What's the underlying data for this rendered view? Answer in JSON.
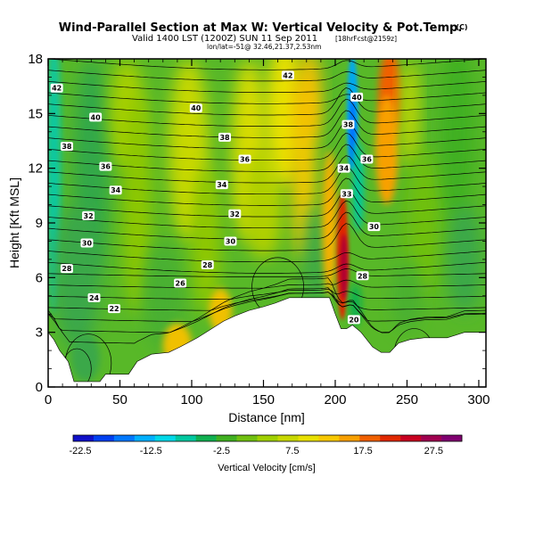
{
  "title": {
    "main": "Wind-Parallel Section at Max W: Vertical Velocity & Pot.Temp.",
    "copyright": "(C)",
    "valid_line_a": "Valid 1400 LST (1200Z) SUN 11 Sep 2011",
    "valid_line_b": "[18hrFcst@2159z]",
    "location_line": "lon/lat=-51@ 32.46,21.37,2.53nm"
  },
  "chart_data": {
    "type": "heatmap",
    "title": "Wind-Parallel Section at Max W: Vertical Velocity & Pot.Temp.",
    "xlabel": "Distance [nm]",
    "ylabel": "Height [Kft MSL]",
    "xlim": [
      0,
      305
    ],
    "ylim": [
      0,
      18
    ],
    "x_ticks": [
      "0",
      "50",
      "100",
      "150",
      "200",
      "250",
      "300"
    ],
    "y_ticks": [
      "0",
      "3",
      "6",
      "9",
      "12",
      "15",
      "18"
    ],
    "colorbar": {
      "title": "Vertical Velocity [cm/s]",
      "min": -22.5,
      "max": 32.5,
      "tick_labels": [
        "-22.5",
        "-12.5",
        "-2.5",
        "7.5",
        "17.5",
        "27.5"
      ],
      "colors": [
        "#1010c8",
        "#0040f0",
        "#0078ff",
        "#00b0ff",
        "#00d8e8",
        "#00c8a0",
        "#10b050",
        "#40b020",
        "#70c010",
        "#a0d000",
        "#c8d800",
        "#e8e000",
        "#f8c800",
        "#f8a000",
        "#f06000",
        "#e02800",
        "#c80020",
        "#a00050",
        "#800070"
      ]
    },
    "contour_labels": [
      {
        "label": "42",
        "x": 6,
        "y": 16.4
      },
      {
        "label": "42",
        "x": 167,
        "y": 17.1
      },
      {
        "label": "40",
        "x": 33,
        "y": 14.8
      },
      {
        "label": "40",
        "x": 103,
        "y": 15.3
      },
      {
        "label": "40",
        "x": 215,
        "y": 15.9
      },
      {
        "label": "38",
        "x": 13,
        "y": 13.2
      },
      {
        "label": "38",
        "x": 123,
        "y": 13.7
      },
      {
        "label": "38",
        "x": 209,
        "y": 14.4
      },
      {
        "label": "36",
        "x": 40,
        "y": 12.1
      },
      {
        "label": "36",
        "x": 137,
        "y": 12.5
      },
      {
        "label": "36",
        "x": 222,
        "y": 12.5
      },
      {
        "label": "34",
        "x": 47,
        "y": 10.8
      },
      {
        "label": "34",
        "x": 121,
        "y": 11.1
      },
      {
        "label": "34",
        "x": 206,
        "y": 12.0
      },
      {
        "label": "33",
        "x": 208,
        "y": 10.6
      },
      {
        "label": "32",
        "x": 28,
        "y": 9.4
      },
      {
        "label": "32",
        "x": 130,
        "y": 9.5
      },
      {
        "label": "30",
        "x": 27,
        "y": 7.9
      },
      {
        "label": "30",
        "x": 127,
        "y": 8.0
      },
      {
        "label": "30",
        "x": 227,
        "y": 8.8
      },
      {
        "label": "28",
        "x": 13,
        "y": 6.5
      },
      {
        "label": "28",
        "x": 111,
        "y": 6.7
      },
      {
        "label": "28",
        "x": 219,
        "y": 6.1
      },
      {
        "label": "26",
        "x": 92,
        "y": 5.7
      },
      {
        "label": "24",
        "x": 32,
        "y": 4.9
      },
      {
        "label": "22",
        "x": 46,
        "y": 4.3
      },
      {
        "label": "20",
        "x": 213,
        "y": 3.7
      }
    ],
    "terrain_top": [
      [
        0,
        3.0
      ],
      [
        4,
        2.6
      ],
      [
        8,
        2.0
      ],
      [
        14,
        1.4
      ],
      [
        18,
        0.3
      ],
      [
        36,
        0.3
      ],
      [
        40,
        0.7
      ],
      [
        56,
        0.7
      ],
      [
        62,
        1.4
      ],
      [
        72,
        1.8
      ],
      [
        84,
        1.9
      ],
      [
        92,
        2.2
      ],
      [
        104,
        2.7
      ],
      [
        112,
        3.1
      ],
      [
        122,
        3.6
      ],
      [
        130,
        3.9
      ],
      [
        140,
        4.2
      ],
      [
        150,
        4.4
      ],
      [
        158,
        4.6
      ],
      [
        168,
        4.9
      ],
      [
        180,
        4.9
      ],
      [
        190,
        4.9
      ],
      [
        196,
        4.9
      ],
      [
        200,
        4.0
      ],
      [
        204,
        3.2
      ],
      [
        208,
        3.2
      ],
      [
        212,
        3.4
      ],
      [
        218,
        3.0
      ],
      [
        226,
        2.2
      ],
      [
        232,
        1.9
      ],
      [
        238,
        1.9
      ],
      [
        244,
        2.4
      ],
      [
        252,
        2.6
      ],
      [
        262,
        2.7
      ],
      [
        278,
        2.7
      ],
      [
        290,
        3.0
      ],
      [
        305,
        3.0
      ]
    ],
    "updraft_core": {
      "x": 206,
      "y": 7.0,
      "value": 32.5
    },
    "downdraft_core": {
      "x": 212,
      "y": 15.0,
      "value": -17.5
    }
  }
}
